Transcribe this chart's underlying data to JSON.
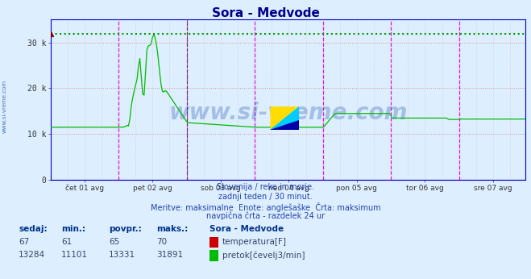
{
  "title": "Sora - Medvode",
  "title_color": "#00008B",
  "title_fontsize": 11,
  "bg_color": "#ddeeff",
  "plot_bg_color": "#ddeeff",
  "ylim": [
    0,
    35000
  ],
  "yticks": [
    0,
    10000,
    20000,
    30000
  ],
  "ytick_labels": [
    "0",
    "10 k",
    "20 k",
    "30 k"
  ],
  "xticklabels": [
    "čet 01 avg",
    "pet 02 avg",
    "sob 03 avg",
    "ned 04 avg",
    "pon 05 avg",
    "tor 06 avg",
    "sre 07 avg"
  ],
  "n_days": 7,
  "n_points": 336,
  "temp_max": 70,
  "temp_color": "#cc0000",
  "flow_peak_value": 31891,
  "flow_color": "#00bb00",
  "flow_max_color": "#009900",
  "temp_max_color": "#880000",
  "vline_color": "#dd00dd",
  "hgrid_color": "#dd6666",
  "vgrid_color": "#dd6666",
  "watermark": "www.si-vreme.com",
  "watermark_color": "#2255aa",
  "info_line1": "Slovenija / reke in morje.",
  "info_line2": "zadnji teden / 30 minut.",
  "info_line3": "Meritve: maksimalne  Enote: anglešaške  Črta: maksimum",
  "info_line4": "navpična črta - razdelek 24 ur",
  "col_headers": [
    "sedaj:",
    "min.:",
    "povpr.:",
    "maks.:",
    "Sora - Medvode"
  ],
  "temp_row": [
    "67",
    "61",
    "65",
    "70"
  ],
  "flow_row": [
    "13284",
    "11101",
    "13331",
    "31891"
  ],
  "temp_label": "temperatura[F]",
  "flow_label": "pretok[čevelj3/min]",
  "sidebar_text": "www.si-vreme.com"
}
